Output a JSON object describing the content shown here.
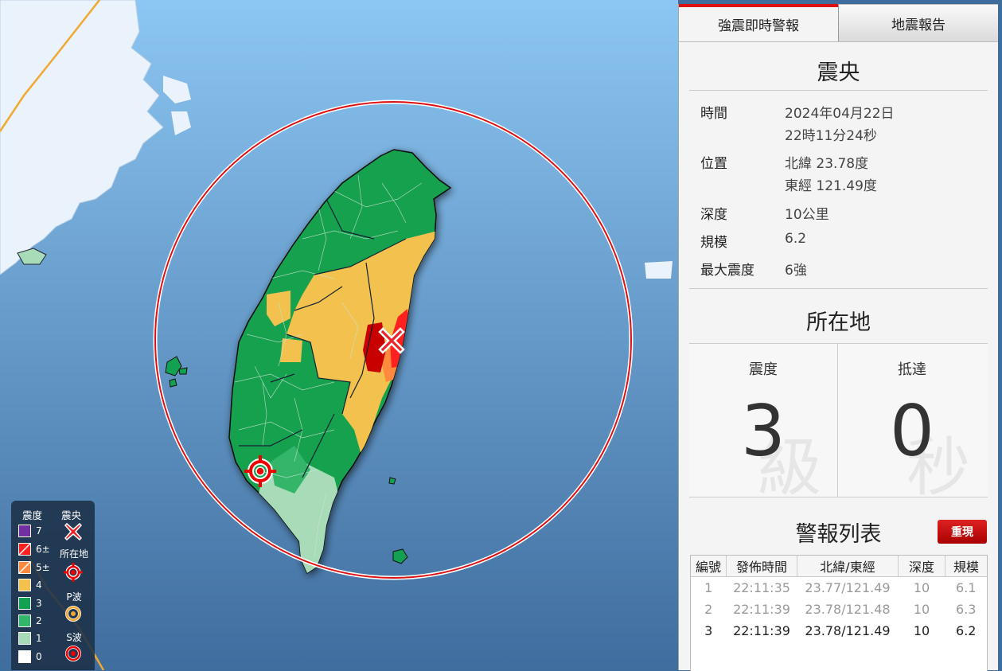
{
  "tabs": {
    "active": "強震即時警報",
    "other": "地震報告"
  },
  "epicenter": {
    "title": "震央",
    "rows": [
      {
        "key": "時間",
        "value1": "2024年04月22日",
        "value2": "22時11分24秒"
      },
      {
        "key": "位置",
        "value1": "北緯 23.78度",
        "value2": "東經 121.49度"
      },
      {
        "key": "深度",
        "value1": "10公里",
        "value2": ""
      },
      {
        "key": "規模",
        "value1": "6.2",
        "value2": ""
      },
      {
        "key": "最大震度",
        "value1": "6強",
        "value2": ""
      }
    ]
  },
  "location": {
    "title": "所在地",
    "intensity_label": "震度",
    "intensity_value": "3",
    "intensity_unit": "級",
    "arrival_label": "抵達",
    "arrival_value": "0",
    "arrival_unit": "秒"
  },
  "alerts": {
    "title": "警報列表",
    "replay_label": "重現",
    "columns": [
      "編號",
      "發佈時間",
      "北緯/東經",
      "深度",
      "規模"
    ],
    "rows": [
      [
        "1",
        "22:11:35",
        "23.77/121.49",
        "10",
        "6.1"
      ],
      [
        "2",
        "22:11:39",
        "23.78/121.48",
        "10",
        "6.3"
      ],
      [
        "3",
        "22:11:39",
        "23.78/121.49",
        "10",
        "6.2"
      ]
    ]
  },
  "legend": {
    "intensity_header": "震度",
    "epicenter_header": "震央",
    "location_label": "所在地",
    "p_wave_label": "P波",
    "s_wave_label": "S波",
    "levels": [
      {
        "label": "7",
        "color": "#7030a0"
      },
      {
        "label": "6±",
        "color": "#ff2020"
      },
      {
        "label": "5±",
        "color": "#ff8a3d"
      },
      {
        "label": "4",
        "color": "#f2c14e"
      },
      {
        "label": "3",
        "color": "#12a150"
      },
      {
        "label": "2",
        "color": "#33b56a"
      },
      {
        "label": "1",
        "color": "#a8dcb8"
      },
      {
        "label": "0",
        "color": "#ffffff"
      }
    ]
  },
  "colors": {
    "sea_top": "#8cc6f2",
    "sea_bottom": "#3f6d9e",
    "land_china": "#eaf2fb",
    "alert_red": "#d11"
  },
  "icons": [
    "epicenter-cross-icon",
    "location-target-icon",
    "p-wave-icon",
    "s-wave-icon"
  ]
}
